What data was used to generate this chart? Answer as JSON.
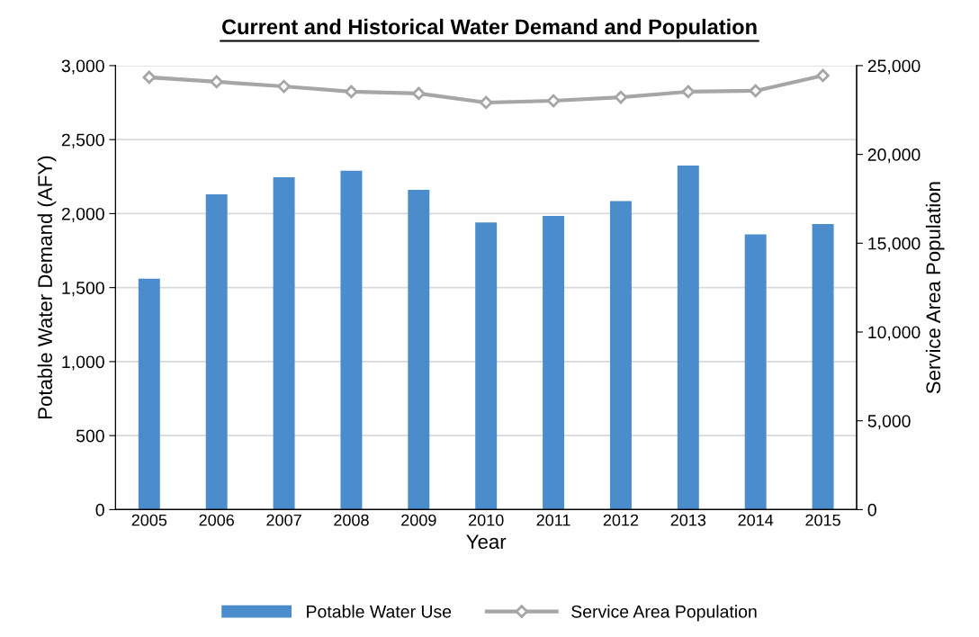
{
  "chart_data": {
    "type": "bar",
    "title": "Current and Historical Water Demand and Population",
    "xlabel": "Year",
    "ylabel": "Potable Water Demand (AFY)",
    "y2label": "Service Area Population",
    "categories": [
      "2005",
      "2006",
      "2007",
      "2008",
      "2009",
      "2010",
      "2011",
      "2012",
      "2013",
      "2014",
      "2015"
    ],
    "series": [
      {
        "name": "Potable Water Use",
        "color": "#4a8ccc",
        "values": [
          1560,
          2130,
          2245,
          2290,
          2160,
          1940,
          1985,
          2085,
          2325,
          1860,
          1930
        ]
      },
      {
        "name": "Service Area Population",
        "type": "line",
        "axis": "y2",
        "color": "#a6a6a6",
        "marker": "diamond",
        "values": [
          24340,
          24090,
          23830,
          23530,
          23430,
          22920,
          23020,
          23220,
          23530,
          23580,
          24440
        ]
      }
    ],
    "ylim": [
      0,
      3000
    ],
    "yticks": [
      {
        "value": 0,
        "label": "0"
      },
      {
        "value": 500,
        "label": "500"
      },
      {
        "value": 1000,
        "label": "1,000"
      },
      {
        "value": 1500,
        "label": "1,500"
      },
      {
        "value": 2000,
        "label": "2,000"
      },
      {
        "value": 2500,
        "label": "2,500"
      },
      {
        "value": 3000,
        "label": "3,000"
      }
    ],
    "y2lim": [
      0,
      25000
    ],
    "y2ticks": [
      {
        "value": 0,
        "label": "0"
      },
      {
        "value": 5000,
        "label": "5,000"
      },
      {
        "value": 10000,
        "label": "10,000"
      },
      {
        "value": 15000,
        "label": "15,000"
      },
      {
        "value": 20000,
        "label": "20,000"
      },
      {
        "value": 25000,
        "label": "25,000"
      }
    ],
    "grid": "y",
    "legend": "bottom"
  }
}
